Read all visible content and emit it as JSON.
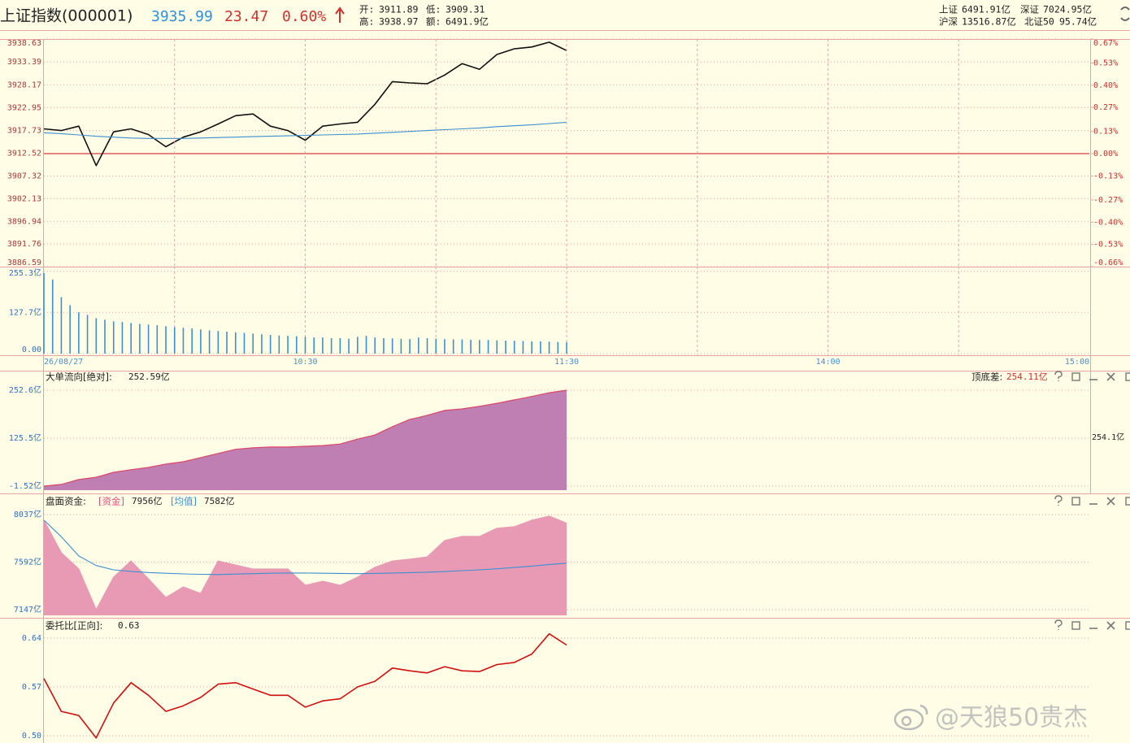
{
  "header": {
    "name": "上证指数(000001)",
    "price": "3935.99",
    "change": "23.47",
    "pct": "0.60%",
    "stats": [
      [
        "开:",
        "3911.89"
      ],
      [
        "低:",
        "3909.31"
      ],
      [
        "高:",
        "3938.97"
      ],
      [
        "额:",
        "6491.9亿"
      ]
    ],
    "markets": [
      [
        "上证",
        "6491.91亿"
      ],
      [
        "深证",
        "7024.95亿"
      ],
      [
        "沪深",
        "13516.87亿"
      ],
      [
        "北证50",
        "95.74亿"
      ]
    ]
  },
  "chart_data": [
    {
      "type": "line",
      "x": [
        0,
        4,
        8,
        12,
        16,
        20,
        24,
        28,
        32,
        36,
        40,
        44,
        48,
        52,
        56,
        60,
        64,
        68,
        72,
        76,
        80,
        84,
        88,
        92,
        96,
        100,
        104,
        108,
        112,
        116,
        120
      ],
      "xlim": [
        0,
        240
      ],
      "ylim": [
        3886.59,
        3938.63
      ],
      "yticks": [
        3938.63,
        3933.39,
        3928.17,
        3922.95,
        3917.73,
        3912.52,
        3907.32,
        3902.13,
        3896.94,
        3891.76,
        3886.59
      ],
      "y2lim": [
        -0.66,
        0.67
      ],
      "y2ticks": [
        {
          "value": 0.67,
          "label": "0.67%"
        },
        {
          "value": 0.53,
          "label": "0.53%"
        },
        {
          "value": 0.4,
          "label": "0.40%"
        },
        {
          "value": 0.27,
          "label": "0.27%"
        },
        {
          "value": 0.13,
          "label": "0.13%"
        },
        {
          "value": 0,
          "label": "0.00%"
        },
        {
          "value": -0.13,
          "label": "-0.13%"
        },
        {
          "value": -0.27,
          "label": "-0.27%"
        },
        {
          "value": -0.4,
          "label": "-0.40%"
        },
        {
          "value": -0.53,
          "label": "-0.53%"
        },
        {
          "value": -0.66,
          "label": "-0.66%"
        }
      ],
      "series": [
        {
          "color": "#111111",
          "values": [
            3918.1,
            3917.7,
            3918.7,
            3909.7,
            3917.4,
            3918.1,
            3916.8,
            3914.0,
            3916.2,
            3917.4,
            3919.2,
            3921.1,
            3921.5,
            3918.7,
            3917.7,
            3915.5,
            3918.7,
            3919.2,
            3919.6,
            3923.7,
            3928.9,
            3928.6,
            3928.4,
            3930.4,
            3933.0,
            3931.7,
            3935.1,
            3936.4,
            3936.8,
            3937.9,
            3935.99
          ]
        },
        {
          "color": "#3a8fd0",
          "values": [
            3917.2,
            3917.0,
            3916.7,
            3916.4,
            3916.2,
            3916.0,
            3915.9,
            3915.9,
            3915.9,
            3916.0,
            3916.1,
            3916.2,
            3916.3,
            3916.4,
            3916.5,
            3916.6,
            3916.7,
            3916.8,
            3916.9,
            3917.1,
            3917.3,
            3917.5,
            3917.7,
            3917.9,
            3918.1,
            3918.3,
            3918.6,
            3918.8,
            3919.0,
            3919.3,
            3919.6
          ]
        }
      ]
    },
    {
      "type": "bar",
      "x": [
        0,
        2,
        4,
        6,
        8,
        10,
        12,
        14,
        16,
        18,
        20,
        22,
        24,
        26,
        28,
        30,
        32,
        34,
        36,
        38,
        40,
        42,
        44,
        46,
        48,
        50,
        52,
        54,
        56,
        58,
        60,
        62,
        64,
        66,
        68,
        70,
        72,
        74,
        76,
        78,
        80,
        82,
        84,
        86,
        88,
        90,
        92,
        94,
        96,
        98,
        100,
        102,
        104,
        106,
        108,
        110,
        112,
        114,
        116,
        118,
        120
      ],
      "xlim": [
        0,
        240
      ],
      "xticks": [
        {
          "value": 0,
          "label": "26/08/27"
        },
        {
          "value": 60,
          "label": "10:30"
        },
        {
          "value": 120,
          "label": "11:30"
        },
        {
          "value": 180,
          "label": "14:00"
        },
        {
          "value": 240,
          "label": "15:00"
        }
      ],
      "ylim": [
        0,
        262
      ],
      "yticks": [
        {
          "value": 0,
          "label": "0.00"
        },
        {
          "value": 127.7,
          "label": "127.7亿"
        },
        {
          "value": 255.3,
          "label": "255.3亿"
        }
      ],
      "color": "#3d8fd0",
      "values": [
        250,
        230,
        175,
        150,
        128,
        120,
        110,
        105,
        100,
        98,
        95,
        92,
        90,
        88,
        85,
        82,
        80,
        78,
        75,
        72,
        70,
        68,
        66,
        64,
        62,
        60,
        58,
        56,
        55,
        54,
        52,
        50,
        50,
        48,
        48,
        46,
        52,
        55,
        50,
        48,
        47,
        46,
        45,
        50,
        48,
        46,
        45,
        44,
        44,
        43,
        42,
        42,
        41,
        40,
        40,
        39,
        38,
        38,
        37,
        36,
        35
      ]
    },
    {
      "type": "area",
      "title": "大单流向[绝对]:",
      "value_text": "252.59亿",
      "side_label": "顶底差:",
      "side_value": "254.11亿",
      "side_axis_label": "254.1亿",
      "x": [
        0,
        4,
        8,
        12,
        16,
        20,
        24,
        28,
        32,
        36,
        40,
        44,
        48,
        52,
        56,
        60,
        64,
        68,
        72,
        76,
        80,
        84,
        88,
        92,
        96,
        100,
        104,
        108,
        112,
        116,
        120
      ],
      "xlim": [
        0,
        240
      ],
      "ylim": [
        -12.3,
        267.7
      ],
      "yticks": [
        {
          "value": -1.52,
          "label": "-1.52亿"
        },
        {
          "value": 125.5,
          "label": "125.5亿"
        },
        {
          "value": 252.6,
          "label": "252.6亿"
        }
      ],
      "color": "#c07fb2",
      "line_color": "#d8486a",
      "values": [
        -1.52,
        3,
        16,
        22,
        35,
        42,
        48,
        57,
        63,
        74,
        85,
        96,
        100,
        102,
        102,
        104,
        106,
        110,
        123,
        134,
        156,
        175,
        186,
        199,
        203,
        210,
        218,
        227,
        236,
        246,
        252.59
      ]
    },
    {
      "type": "area",
      "title": "盘面资金:",
      "x": [
        0,
        4,
        8,
        12,
        16,
        20,
        24,
        28,
        32,
        36,
        40,
        44,
        48,
        52,
        56,
        60,
        64,
        68,
        72,
        76,
        80,
        84,
        88,
        92,
        96,
        100,
        104,
        108,
        112,
        116,
        120
      ],
      "xlim": [
        0,
        240
      ],
      "ylim": [
        7094,
        8090
      ],
      "yticks": [
        {
          "value": 7147,
          "label": "7147亿"
        },
        {
          "value": 7592,
          "label": "7592亿"
        },
        {
          "value": 8037,
          "label": "8037亿"
        }
      ],
      "series": [
        {
          "name": "[资金]",
          "value_text": "7956亿",
          "type": "area",
          "color": "#e89ab4",
          "values": [
            7984,
            7680,
            7527,
            7147,
            7451,
            7603,
            7436,
            7261,
            7360,
            7299,
            7603,
            7565,
            7527,
            7527,
            7527,
            7375,
            7413,
            7375,
            7451,
            7543,
            7603,
            7619,
            7641,
            7794,
            7832,
            7832,
            7908,
            7923,
            7984,
            8022,
            7956
          ]
        },
        {
          "name": "[均值]",
          "value_text": "7582亿",
          "type": "line",
          "color": "#3a8fd0",
          "values": [
            7984,
            7830,
            7650,
            7560,
            7520,
            7505,
            7495,
            7488,
            7482,
            7478,
            7476,
            7480,
            7484,
            7488,
            7490,
            7490,
            7488,
            7486,
            7484,
            7486,
            7490,
            7494,
            7498,
            7504,
            7512,
            7520,
            7530,
            7542,
            7555,
            7570,
            7582
          ]
        }
      ]
    },
    {
      "type": "line",
      "title": "委托比[正向]:",
      "value_text": "0.63",
      "x": [
        0,
        4,
        8,
        12,
        16,
        20,
        24,
        28,
        32,
        36,
        40,
        44,
        48,
        52,
        56,
        60,
        64,
        68,
        72,
        76,
        80,
        84,
        88,
        92,
        96,
        100,
        104,
        108,
        112,
        116,
        120
      ],
      "xlim": [
        0,
        240
      ],
      "ylim": [
        0.492,
        0.648
      ],
      "yticks": [
        {
          "value": 0.5,
          "label": "0.50"
        },
        0.57,
        0.64
      ],
      "color": "#d01010",
      "values": [
        0.582,
        0.535,
        0.529,
        0.497,
        0.547,
        0.576,
        0.558,
        0.535,
        0.543,
        0.555,
        0.574,
        0.576,
        0.567,
        0.558,
        0.558,
        0.541,
        0.55,
        0.553,
        0.57,
        0.578,
        0.597,
        0.593,
        0.59,
        0.599,
        0.593,
        0.592,
        0.602,
        0.605,
        0.617,
        0.646,
        0.63
      ]
    }
  ],
  "watermark": "@天狼50贵杰"
}
